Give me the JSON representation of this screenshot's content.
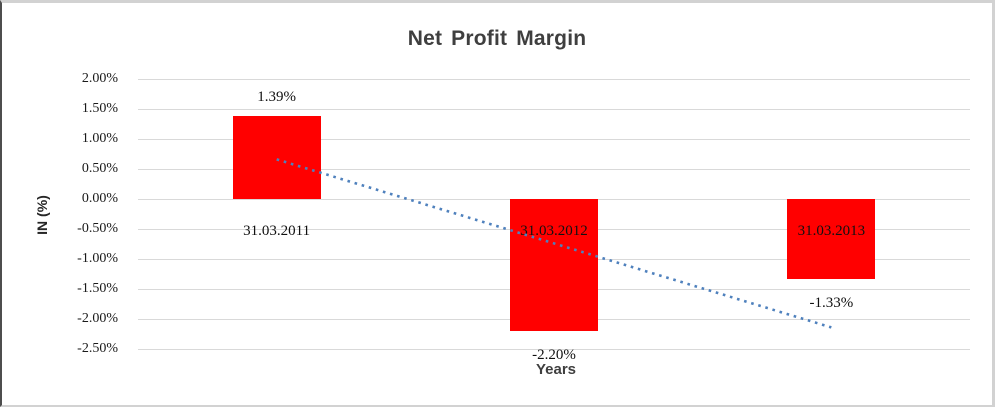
{
  "window": {
    "background": "#ffffff",
    "frame_border_light": "#d2d2d2",
    "frame_border_dark": "#4d4d4d"
  },
  "chart_data": {
    "type": "bar",
    "title": "Net Profit Margin",
    "xlabel": "Years",
    "ylabel": "IN (%)",
    "categories": [
      "31.03.2011",
      "31.03.2012",
      "31.03.2013"
    ],
    "values": [
      1.39,
      -2.2,
      -1.33
    ],
    "data_labels": [
      "1.39%",
      "-2.20%",
      "-1.33%"
    ],
    "y_ticks": [
      {
        "label": "2.00%",
        "value": 2.0
      },
      {
        "label": "1.50%",
        "value": 1.5
      },
      {
        "label": "1.00%",
        "value": 1.0
      },
      {
        "label": "0.50%",
        "value": 0.5
      },
      {
        "label": "0.00%",
        "value": 0.0
      },
      {
        "label": "-0.50%",
        "value": -0.5
      },
      {
        "label": "-1.00%",
        "value": -1.0
      },
      {
        "label": "-1.50%",
        "value": -1.5
      },
      {
        "label": "-2.00%",
        "value": -2.0
      },
      {
        "label": "-2.50%",
        "value": -2.5
      }
    ],
    "ylim": [
      -2.5,
      2.0
    ],
    "grid": true,
    "legend": "none",
    "bar_color": "#ff0000",
    "gridline_color": "#d9d9d9",
    "title_color": "#3f3f3f",
    "trendline": {
      "type": "linear",
      "style": "dotted",
      "color": "#4f81bd",
      "start_value": 0.66,
      "end_value": -2.14
    }
  }
}
